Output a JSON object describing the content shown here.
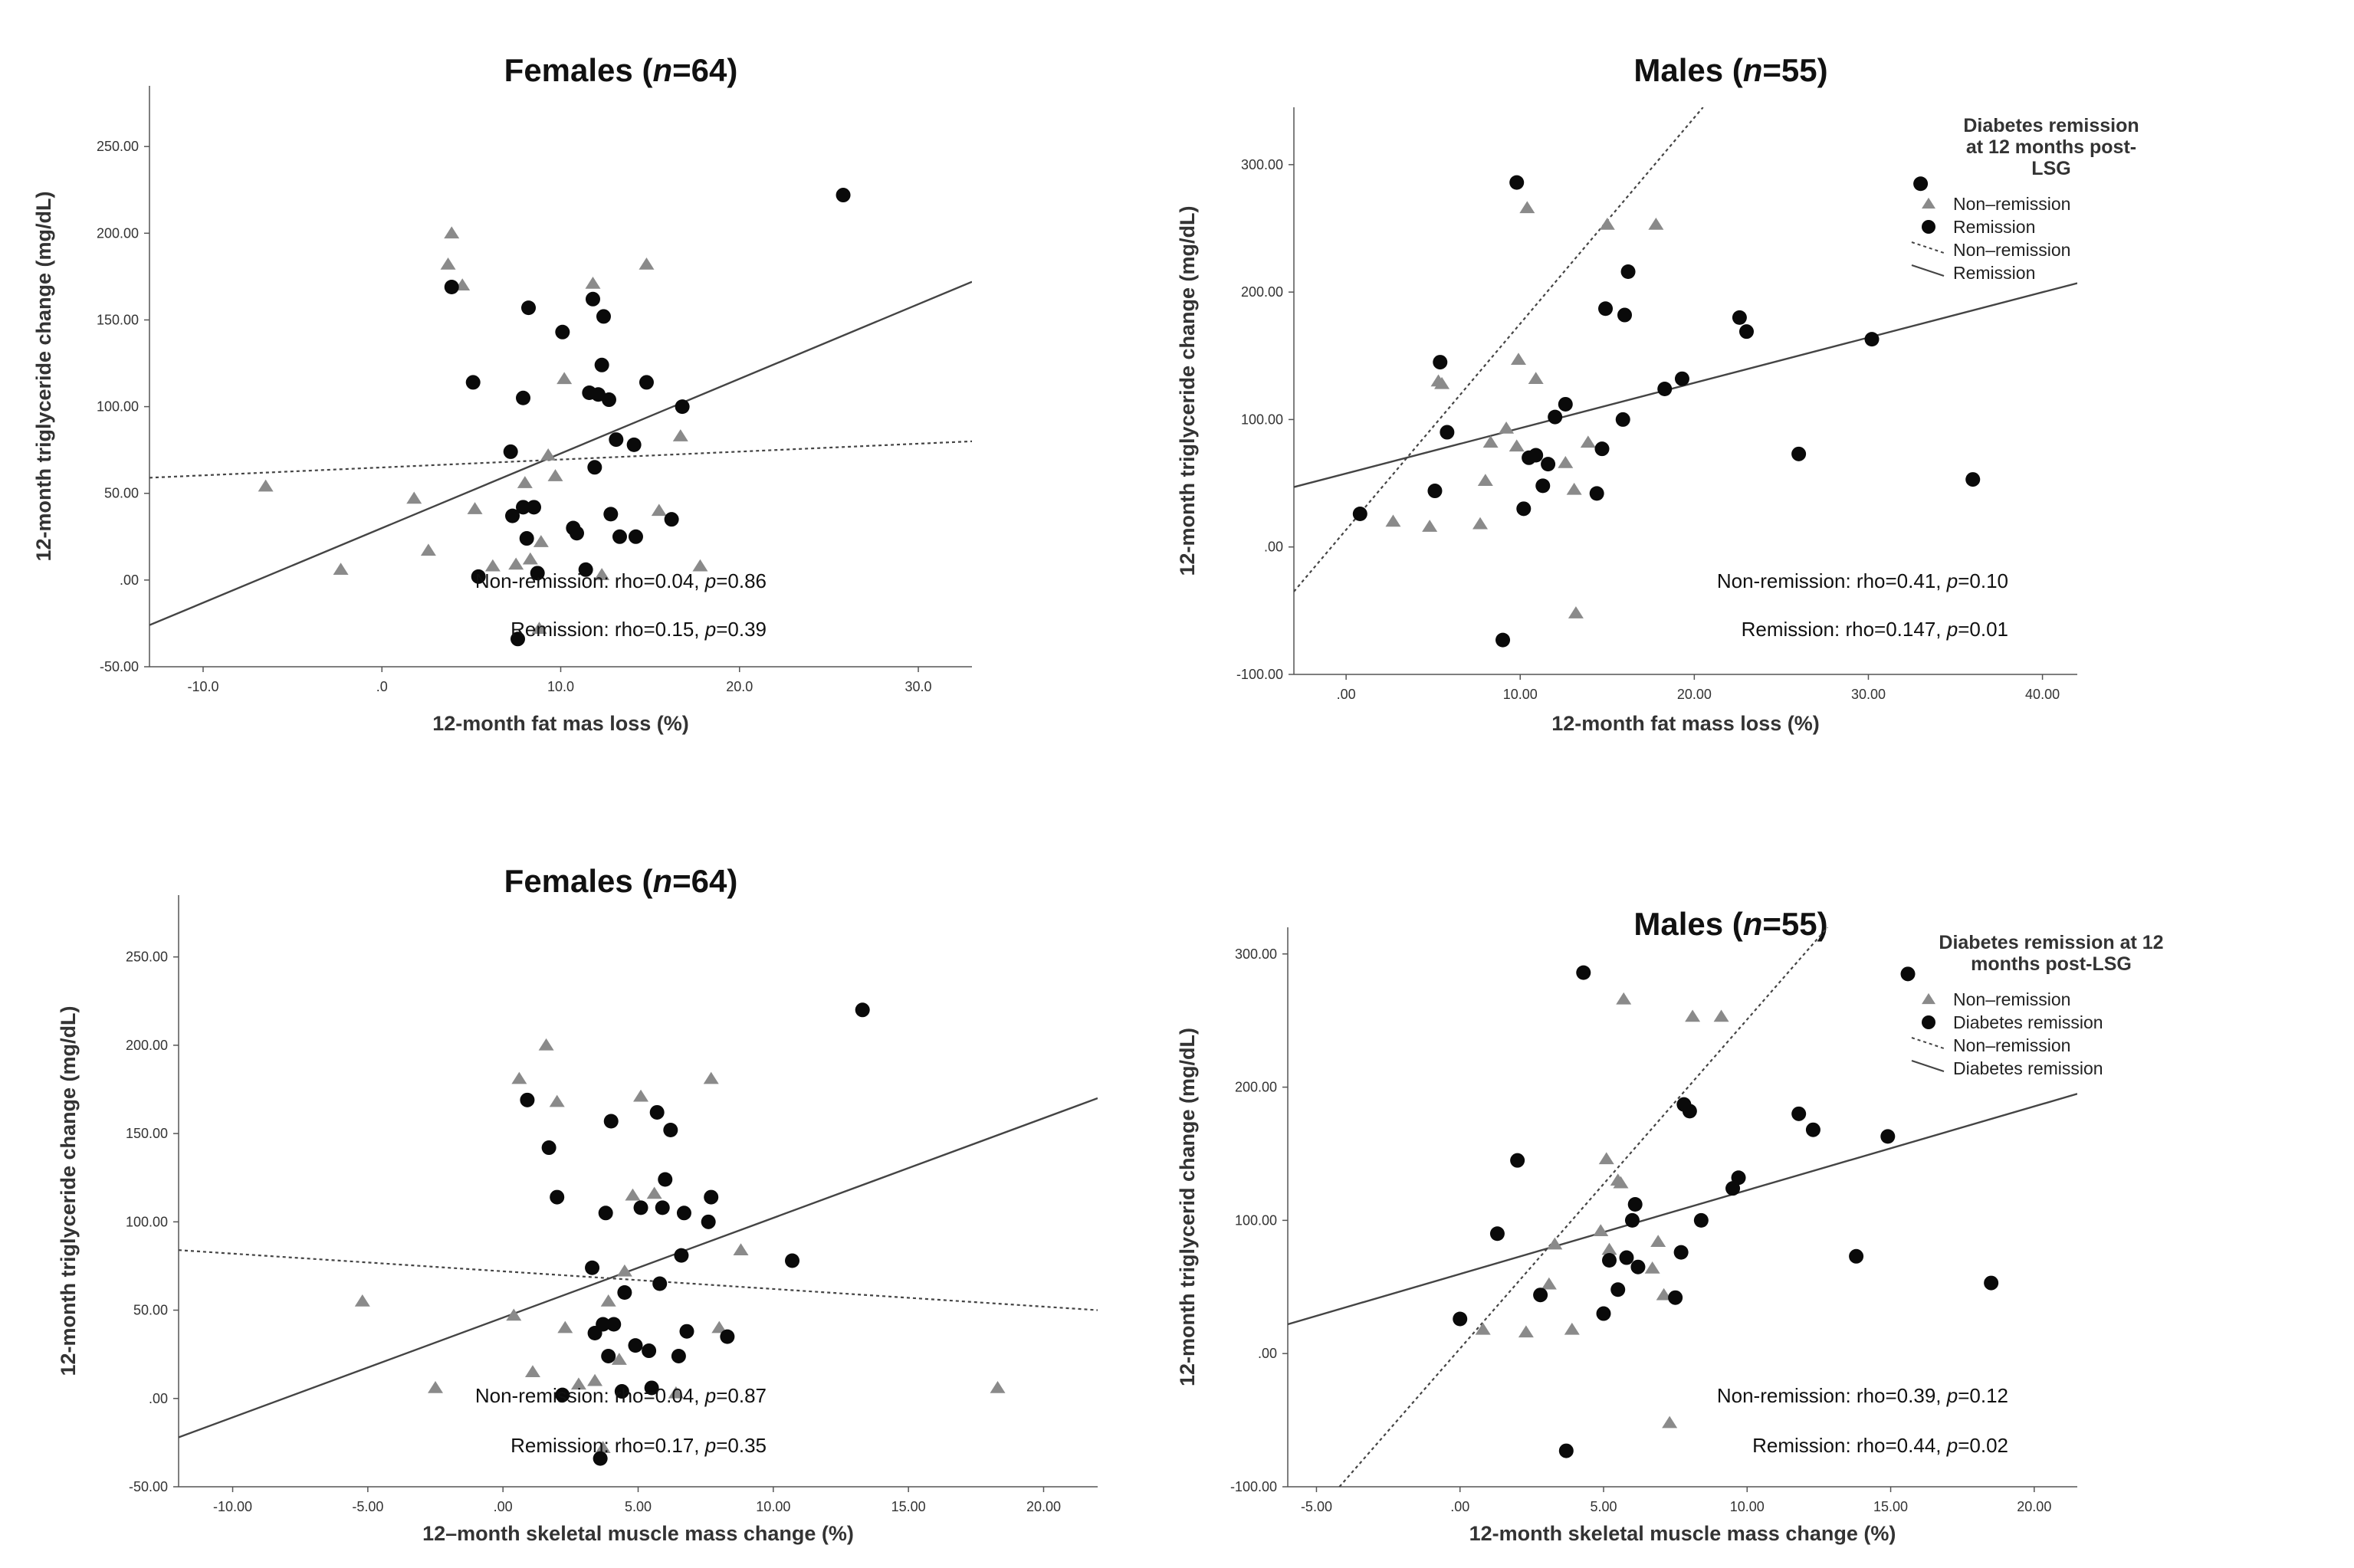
{
  "colors": {
    "nonremission": "#8a8a8a",
    "remission": "#0a0a0a",
    "axis": "#555555"
  },
  "chart_data": [
    {
      "type": "scatter",
      "title_pre": "Females (",
      "title_n": "n",
      "title_post": "=64)",
      "xlabel": "12-month fat mas loss (%)",
      "ylabel": "12-month triglyceride change (mg/dL)",
      "xlim": [
        -13,
        33
      ],
      "ylim": [
        -50,
        285
      ],
      "xticks": [
        -10,
        0,
        10,
        20,
        30
      ],
      "xtick_labels": [
        "-10.0",
        ".0",
        "10.0",
        "20.0",
        "30.0"
      ],
      "yticks": [
        -50,
        0,
        50,
        100,
        150,
        200,
        250
      ],
      "ytick_labels": [
        "-50.00",
        ".00",
        "50.00",
        "100.00",
        "150.00",
        "200.00",
        "250.00"
      ],
      "annotations": [
        {
          "pre": "Non-remission: rho=0.04, ",
          "p": "p",
          "post": "=0.86"
        },
        {
          "pre": "Remission: rho=0.15, ",
          "p": "p",
          "post": "=0.39"
        }
      ],
      "fit_lines": [
        {
          "group": "nonremission",
          "style": "dotted",
          "x": [
            -13,
            33
          ],
          "y": [
            59,
            80
          ]
        },
        {
          "group": "remission",
          "style": "solid",
          "x": [
            -13,
            33
          ],
          "y": [
            -26,
            172
          ]
        }
      ],
      "series": [
        {
          "group": "nonremission",
          "x": [
            -6.5,
            -2.3,
            1.8,
            2.6,
            3.7,
            3.9,
            4.5,
            5.2,
            6.2,
            7.5,
            8,
            8.3,
            8.8,
            8.9,
            9.3,
            9.7,
            10.2,
            11.8,
            12.3,
            14.8,
            15.5,
            16.7,
            17.8
          ],
          "y": [
            54,
            6,
            47,
            17,
            182,
            200,
            170,
            41,
            8,
            9,
            56,
            12,
            -28,
            22,
            72,
            60,
            116,
            171,
            3,
            182,
            40,
            83,
            8
          ]
        },
        {
          "group": "remission",
          "x": [
            3.9,
            5.1,
            5.4,
            7.2,
            7.3,
            7.6,
            7.9,
            7.9,
            8.1,
            8.2,
            8.5,
            8.7,
            10.1,
            10.7,
            10.9,
            11.4,
            11.6,
            11.8,
            11.9,
            12.1,
            12.3,
            12.4,
            12.7,
            12.8,
            13.1,
            13.3,
            14.1,
            14.2,
            14.8,
            16.2,
            16.8,
            25.8
          ],
          "y": [
            169,
            114,
            2,
            74,
            37,
            -34,
            42,
            105,
            24,
            157,
            42,
            4,
            143,
            30,
            27,
            6,
            108,
            162,
            65,
            107,
            124,
            152,
            104,
            38,
            81,
            25,
            78,
            25,
            114,
            35,
            100,
            222
          ]
        }
      ]
    },
    {
      "type": "scatter",
      "title_pre": "Males (",
      "title_n": "n",
      "title_post": "=55)",
      "xlabel": "12-month fat mass loss (%)",
      "ylabel": "12-month triglyceride change (mg/dL)",
      "xlim": [
        -3,
        42
      ],
      "ylim": [
        -100,
        345
      ],
      "xticks": [
        0,
        10,
        20,
        30,
        40
      ],
      "xtick_labels": [
        ".00",
        "10.00",
        "20.00",
        "30.00",
        "40.00"
      ],
      "yticks": [
        -100,
        0,
        100,
        200,
        300
      ],
      "ytick_labels": [
        "-100.00",
        ".00",
        "100.00",
        "200.00",
        "300.00"
      ],
      "annotations": [
        {
          "pre": "Non-remission: rho=0.41, ",
          "p": "p",
          "post": "=0.10"
        },
        {
          "pre": "Remission: rho=0.147, ",
          "p": "p",
          "post": "=0.01"
        }
      ],
      "legend": {
        "title": [
          "Diabetes remission",
          "at 12 months post-",
          "LSG"
        ],
        "position": "right",
        "items": [
          {
            "kind": "triangle",
            "label": "Non–remission"
          },
          {
            "kind": "circle",
            "label": "Remission"
          },
          {
            "kind": "dotted",
            "label": "Non–remission"
          },
          {
            "kind": "solid",
            "label": "Remission"
          }
        ]
      },
      "fit_lines": [
        {
          "group": "nonremission",
          "style": "dotted",
          "x": [
            -3,
            20.5
          ],
          "y": [
            -35,
            345
          ]
        },
        {
          "group": "remission",
          "style": "solid",
          "x": [
            -3,
            42
          ],
          "y": [
            47,
            207
          ]
        }
      ],
      "series": [
        {
          "group": "nonremission",
          "x": [
            2.7,
            4.8,
            5.3,
            5.5,
            7.7,
            8,
            8.3,
            9.2,
            9.8,
            9.9,
            10.4,
            10.9,
            12.6,
            13.1,
            13.2,
            13.9,
            15,
            17.8
          ],
          "y": [
            20,
            16,
            130,
            128,
            18,
            52,
            82,
            93,
            79,
            147,
            266,
            132,
            66,
            45,
            -52,
            82,
            253,
            253
          ]
        },
        {
          "group": "remission",
          "x": [
            0.8,
            5.1,
            5.4,
            5.8,
            9,
            9.8,
            10.2,
            10.5,
            10.9,
            11.3,
            11.6,
            12,
            12.6,
            14.4,
            14.7,
            14.9,
            15.9,
            16,
            16.2,
            18.3,
            19.3,
            22.6,
            23,
            26,
            30.2,
            33,
            36
          ],
          "y": [
            26,
            44,
            145,
            90,
            -73,
            286,
            30,
            70,
            72,
            48,
            65,
            102,
            112,
            42,
            77,
            187,
            100,
            182,
            216,
            124,
            132,
            180,
            169,
            73,
            163,
            285,
            53
          ]
        }
      ]
    },
    {
      "type": "scatter",
      "title_pre": "Females (",
      "title_n": "n",
      "title_post": "=64)",
      "xlabel": "12–month skeletal muscle mass change (%)",
      "ylabel": "12-month triglyceride change (mg/dL)",
      "xlim": [
        -12,
        22
      ],
      "ylim": [
        -50,
        285
      ],
      "xticks": [
        -10,
        -5,
        0,
        5,
        10,
        15,
        20
      ],
      "xtick_labels": [
        "-10.00",
        "-5.00",
        ".00",
        "5.00",
        "10.00",
        "15.00",
        "20.00"
      ],
      "yticks": [
        -50,
        0,
        50,
        100,
        150,
        200,
        250
      ],
      "ytick_labels": [
        "-50.00",
        ".00",
        "50.00",
        "100.00",
        "150.00",
        "200.00",
        "250.00"
      ],
      "annotations": [
        {
          "pre": "Non-remission: rho=0.04, ",
          "p": "p",
          "post": "=0.87"
        },
        {
          "pre": "Remission: rho=0.17, ",
          "p": "p",
          "post": "=0.35"
        }
      ],
      "fit_lines": [
        {
          "group": "nonremission",
          "style": "dotted",
          "x": [
            -12,
            22
          ],
          "y": [
            84,
            50
          ]
        },
        {
          "group": "remission",
          "style": "solid",
          "x": [
            -12,
            22
          ],
          "y": [
            -22,
            170
          ]
        }
      ],
      "series": [
        {
          "group": "nonremission",
          "x": [
            -5.2,
            -2.5,
            0.4,
            0.6,
            1.1,
            1.6,
            2,
            2.3,
            2.8,
            3.4,
            3.7,
            3.9,
            4.3,
            4.5,
            4.8,
            5.1,
            5.6,
            6.4,
            7.7,
            8,
            8.8,
            18.3
          ],
          "y": [
            55,
            6,
            47,
            181,
            15,
            200,
            168,
            40,
            8,
            10,
            -28,
            55,
            22,
            72,
            115,
            171,
            116,
            3,
            181,
            40,
            84,
            6
          ]
        },
        {
          "group": "remission",
          "x": [
            0.9,
            1.7,
            2,
            2.2,
            3.3,
            3.4,
            3.6,
            3.7,
            3.8,
            3.9,
            4,
            4.1,
            4.4,
            4.5,
            4.9,
            5.1,
            5.4,
            5.5,
            5.7,
            5.8,
            5.9,
            6,
            6.2,
            6.5,
            6.6,
            6.7,
            6.8,
            7.6,
            7.7,
            8.3,
            10.7,
            13.3
          ],
          "y": [
            169,
            142,
            114,
            2,
            74,
            37,
            -34,
            42,
            105,
            24,
            157,
            42,
            4,
            60,
            30,
            108,
            27,
            6,
            162,
            65,
            108,
            124,
            152,
            24,
            81,
            105,
            38,
            100,
            114,
            35,
            78,
            220
          ]
        }
      ]
    },
    {
      "type": "scatter",
      "title_pre": "Males (",
      "title_n": "n",
      "title_post": "=55)",
      "xlabel": "12-month skeletal muscle mass change (%)",
      "ylabel": "12-month triglycerid change (mg/dL)",
      "xlim": [
        -6,
        21.5
      ],
      "ylim": [
        -100,
        320
      ],
      "xticks": [
        -5,
        0,
        5,
        10,
        15,
        20
      ],
      "xtick_labels": [
        "-5.00",
        ".00",
        "5.00",
        "10.00",
        "15.00",
        "20.00"
      ],
      "yticks": [
        -100,
        0,
        100,
        200,
        300
      ],
      "ytick_labels": [
        "-100.00",
        ".00",
        "100.00",
        "200.00",
        "300.00"
      ],
      "annotations": [
        {
          "pre": "Non-remission: rho=0.39, ",
          "p": "p",
          "post": "=0.12"
        },
        {
          "pre": "Remission: rho=0.44, ",
          "p": "p",
          "post": "=0.02"
        }
      ],
      "legend": {
        "title": [
          "Diabetes remission at 12",
          "months post-LSG"
        ],
        "position": "right",
        "items": [
          {
            "kind": "triangle",
            "label": "Non–remission"
          },
          {
            "kind": "circle",
            "label": "Diabetes remission"
          },
          {
            "kind": "dotted",
            "label": "Non–remission"
          },
          {
            "kind": "solid",
            "label": "Diabetes remission"
          }
        ]
      },
      "fit_lines": [
        {
          "group": "nonremission",
          "style": "dotted",
          "x": [
            -4.2,
            12.8
          ],
          "y": [
            -100,
            320
          ]
        },
        {
          "group": "remission",
          "style": "solid",
          "x": [
            -6,
            21.5
          ],
          "y": [
            22,
            195
          ]
        }
      ],
      "series": [
        {
          "group": "nonremission",
          "x": [
            0.8,
            2.3,
            3.1,
            3.3,
            3.9,
            4.9,
            5.1,
            5.2,
            5.5,
            5.6,
            5.7,
            6.7,
            6.9,
            7.1,
            7.3,
            8.1,
            9.1
          ],
          "y": [
            18,
            16,
            52,
            82,
            18,
            92,
            146,
            78,
            130,
            128,
            266,
            64,
            84,
            44,
            -52,
            253,
            253
          ]
        },
        {
          "group": "remission",
          "x": [
            0,
            1.3,
            2,
            2.8,
            3.7,
            4.3,
            5,
            5.2,
            5.5,
            5.8,
            6,
            6.1,
            6.2,
            7.5,
            7.7,
            7.8,
            8,
            8.4,
            9.5,
            9.7,
            11.8,
            12.3,
            13.8,
            14.9,
            15.6,
            18.5
          ],
          "y": [
            26,
            90,
            145,
            44,
            -73,
            286,
            30,
            70,
            48,
            72,
            100,
            112,
            65,
            42,
            76,
            187,
            182,
            100,
            124,
            132,
            180,
            168,
            73,
            163,
            285,
            53
          ]
        }
      ]
    }
  ]
}
